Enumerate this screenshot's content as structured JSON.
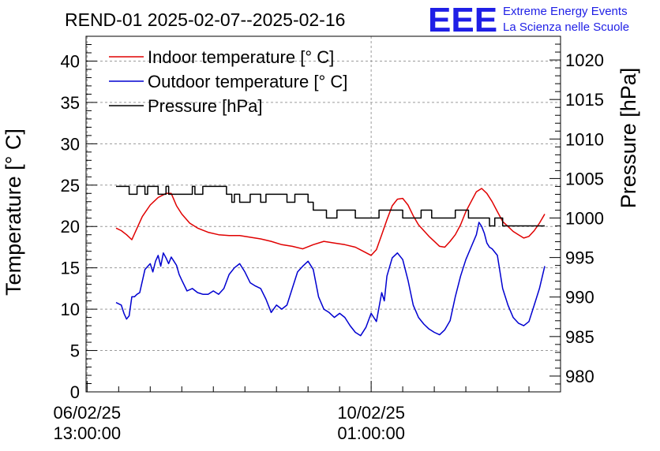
{
  "chart_data": {
    "type": "line",
    "title": "REND-01 2025-02-07--2025-02-16",
    "ylabel": "Temperature [° C]",
    "y2label": "Pressure [hPa]",
    "ylim": [
      0,
      43
    ],
    "y2lim": [
      978,
      1023
    ],
    "yticks": [
      0,
      5,
      10,
      15,
      20,
      25,
      30,
      35,
      40
    ],
    "y2ticks": [
      980,
      985,
      990,
      995,
      1000,
      1005,
      1010,
      1015,
      1020
    ],
    "xlim_hours": [
      -0.4,
      180
    ],
    "xticks": [
      {
        "hour": 0,
        "date": "06/02/25",
        "time": "13:00:00"
      },
      {
        "hour": 108,
        "date": "10/02/25",
        "time": "01:00:00"
      }
    ],
    "x_unit": "hours since 06/02/25 13:00:00",
    "grid": true,
    "legend_position": "top-left",
    "series": [
      {
        "name": "Indoor temperature [° C]",
        "color": "#e00000",
        "axis": "left",
        "x": [
          11,
          13,
          15,
          17,
          19,
          21,
          24,
          27,
          30,
          32,
          34,
          36,
          39,
          42,
          46,
          50,
          54,
          58,
          62,
          66,
          70,
          74,
          78,
          82,
          86,
          90,
          94,
          98,
          102,
          105,
          108,
          110,
          112,
          114,
          116,
          118,
          120,
          122,
          124,
          126,
          128,
          130,
          132,
          134,
          136,
          138,
          140,
          142,
          144,
          146,
          148,
          150,
          152,
          154,
          156,
          158,
          160,
          162,
          164,
          166,
          168,
          170,
          172,
          174
        ],
        "values": [
          19.8,
          19.5,
          19.0,
          18.4,
          19.8,
          21.2,
          22.6,
          23.5,
          24.0,
          24.0,
          22.5,
          21.5,
          20.4,
          19.8,
          19.3,
          19.0,
          18.9,
          18.9,
          18.7,
          18.5,
          18.2,
          17.8,
          17.6,
          17.3,
          17.8,
          18.2,
          18.0,
          17.8,
          17.5,
          17.0,
          16.5,
          17.2,
          19.0,
          20.8,
          22.5,
          23.3,
          23.4,
          22.6,
          21.3,
          20.2,
          19.5,
          18.8,
          18.2,
          17.6,
          17.5,
          18.2,
          19.0,
          20.2,
          21.8,
          23.0,
          24.2,
          24.6,
          24.0,
          23.0,
          21.8,
          20.6,
          20.0,
          19.4,
          19.0,
          18.6,
          18.8,
          19.5,
          20.4,
          21.5
        ]
      },
      {
        "name": "Outdoor temperature [° C]",
        "color": "#0000d0",
        "axis": "left",
        "x": [
          11,
          13,
          14,
          15,
          16,
          17,
          18,
          19,
          20,
          22,
          24,
          25,
          26,
          27,
          28,
          29,
          30,
          31,
          32,
          33,
          34,
          35,
          36,
          38,
          40,
          42,
          44,
          46,
          48,
          50,
          52,
          54,
          56,
          58,
          60,
          62,
          64,
          66,
          68,
          70,
          72,
          74,
          76,
          78,
          80,
          82,
          84,
          86,
          88,
          90,
          92,
          94,
          96,
          98,
          100,
          102,
          104,
          106,
          108,
          110,
          112,
          113,
          114,
          116,
          118,
          120,
          122,
          124,
          126,
          128,
          130,
          132,
          134,
          136,
          138,
          140,
          142,
          144,
          146,
          148,
          149,
          150,
          151,
          152,
          153,
          154,
          156,
          158,
          160,
          162,
          164,
          166,
          168,
          170,
          172,
          174
        ],
        "values": [
          10.8,
          10.5,
          9.5,
          8.8,
          9.2,
          11.5,
          11.5,
          11.8,
          12.0,
          14.8,
          15.5,
          14.5,
          15.8,
          16.5,
          15.2,
          16.8,
          16.2,
          15.5,
          16.3,
          15.8,
          15.3,
          14.2,
          13.5,
          12.2,
          12.5,
          12.0,
          11.8,
          11.8,
          12.2,
          11.8,
          12.5,
          14.2,
          15.0,
          15.5,
          14.5,
          13.2,
          12.8,
          12.5,
          11.2,
          9.6,
          10.5,
          10.0,
          10.5,
          12.5,
          14.5,
          15.2,
          15.8,
          14.8,
          11.5,
          10.0,
          9.6,
          9.0,
          9.5,
          9.0,
          8.0,
          7.2,
          6.8,
          7.8,
          9.5,
          8.5,
          12.0,
          11.0,
          14.0,
          16.2,
          16.8,
          16.0,
          13.5,
          10.5,
          9.0,
          8.2,
          7.6,
          7.2,
          6.9,
          7.5,
          8.6,
          11.5,
          14.0,
          16.0,
          17.5,
          19.0,
          20.5,
          20.0,
          19.2,
          18.0,
          17.5,
          17.3,
          16.5,
          12.5,
          10.5,
          9.0,
          8.3,
          8.0,
          8.5,
          10.5,
          12.5,
          15.2
        ]
      },
      {
        "name": "Pressure [hPa]",
        "color": "#000000",
        "axis": "right",
        "x": [
          11,
          16,
          16,
          19,
          19,
          22,
          22,
          23,
          23,
          27,
          27,
          30,
          30,
          31,
          31,
          40,
          40,
          41,
          41,
          44,
          44,
          53,
          53,
          55,
          55,
          56,
          56,
          58,
          58,
          62,
          62,
          66,
          66,
          68,
          68,
          76,
          76,
          79,
          79,
          84,
          84,
          86,
          86,
          91,
          91,
          95,
          95,
          102,
          102,
          111,
          111,
          120,
          120,
          127,
          127,
          131,
          131,
          140,
          140,
          145,
          145,
          153,
          153,
          155,
          155,
          158,
          158,
          166,
          166,
          174
        ],
        "values": [
          1004.0,
          1004.0,
          1003.0,
          1003.0,
          1004.0,
          1004.0,
          1003.0,
          1003.0,
          1004.0,
          1004.0,
          1003.0,
          1003.0,
          1004.0,
          1004.0,
          1003.0,
          1003.0,
          1004.0,
          1004.0,
          1003.0,
          1003.0,
          1004.0,
          1004.0,
          1003.0,
          1003.0,
          1002.0,
          1002.0,
          1003.0,
          1003.0,
          1002.0,
          1002.0,
          1003.0,
          1003.0,
          1002.0,
          1002.0,
          1003.0,
          1003.0,
          1002.0,
          1002.0,
          1003.0,
          1003.0,
          1002.0,
          1002.0,
          1001.0,
          1001.0,
          1000.0,
          1000.0,
          1001.0,
          1001.0,
          1000.0,
          1000.0,
          1001.0,
          1001.0,
          1000.0,
          1000.0,
          1001.0,
          1001.0,
          1000.0,
          1000.0,
          1001.0,
          1001.0,
          1000.0,
          1000.0,
          999.0,
          999.0,
          1000.0,
          1000.0,
          999.0,
          999.0,
          999.0,
          999.0
        ]
      }
    ]
  },
  "branding": {
    "logo_text": "EEE",
    "line1": "Extreme Energy Events",
    "line2": "La Scienza nelle Scuole",
    "color": "#1f1fe6"
  }
}
